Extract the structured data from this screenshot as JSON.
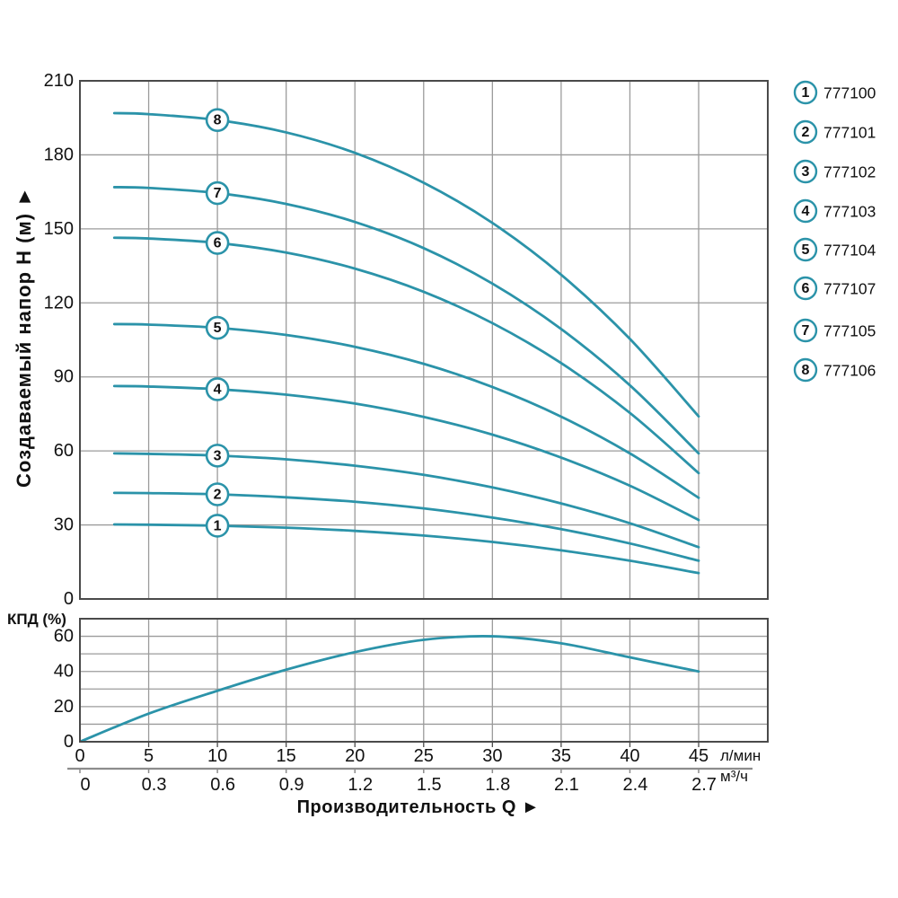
{
  "colors": {
    "curve": "#2b93a9",
    "grid": "#9b9b9b",
    "frame": "#4a4a4a",
    "text": "#111111",
    "secondary_axis": "#8c8c8c",
    "background": "#ffffff"
  },
  "y_axis": {
    "title": "Создаваемый напор H (м) ►",
    "tick_labels": [
      "210",
      "180",
      "150",
      "120",
      "90",
      "60",
      "30",
      "0"
    ]
  },
  "x_axis": {
    "title": "Производительность Q ►",
    "primary_tick_labels": [
      "0",
      "5",
      "10",
      "15",
      "20",
      "25",
      "30",
      "35",
      "40",
      "45"
    ],
    "primary_tick_values": [
      0,
      5,
      10,
      15,
      20,
      25,
      30,
      35,
      40,
      45
    ],
    "primary_unit": "л/мин",
    "secondary_tick_labels": [
      "0",
      "0.3",
      "0.6",
      "0.9",
      "1.2",
      "1.5",
      "1.8",
      "2.1",
      "2.4",
      "2.7"
    ],
    "secondary_unit": "м³/ч"
  },
  "efficiency_axis": {
    "title": "КПД (%)",
    "tick_labels": [
      "60",
      "40",
      "20",
      "0"
    ],
    "tick_values": [
      60,
      40,
      20,
      0
    ]
  },
  "legend": {
    "items": [
      {
        "number": "1",
        "part_number": "777100"
      },
      {
        "number": "2",
        "part_number": "777101"
      },
      {
        "number": "3",
        "part_number": "777102"
      },
      {
        "number": "4",
        "part_number": "777103"
      },
      {
        "number": "5",
        "part_number": "777104"
      },
      {
        "number": "6",
        "part_number": "777107"
      },
      {
        "number": "7",
        "part_number": "777105"
      },
      {
        "number": "8",
        "part_number": "777106"
      }
    ]
  },
  "chart_data": [
    {
      "id": "head_flow_curves",
      "type": "line",
      "xlabel_units": [
        "л/мин",
        "м³/ч"
      ],
      "ylabel": "Создаваемый напор H (м)",
      "xlim": [
        0,
        50
      ],
      "ylim": [
        0,
        210
      ],
      "x_gridline_step": 5,
      "y_gridline_step": 30,
      "curve_label_at_x": 10,
      "x": [
        2.5,
        5,
        10,
        15,
        20,
        25,
        30,
        35,
        40,
        45
      ],
      "series": [
        {
          "name": "1",
          "part_number": "777100",
          "values": [
            30.2,
            30.1,
            29.7,
            28.9,
            27.6,
            25.7,
            23.1,
            19.7,
            15.5,
            10.5
          ]
        },
        {
          "name": "2",
          "part_number": "777101",
          "values": [
            43.0,
            42.9,
            42.4,
            41.2,
            39.4,
            36.7,
            33.0,
            28.3,
            22.5,
            15.5
          ]
        },
        {
          "name": "3",
          "part_number": "777102",
          "values": [
            59.0,
            58.8,
            58.1,
            56.6,
            54.0,
            50.3,
            45.2,
            38.7,
            30.7,
            21.0
          ]
        },
        {
          "name": "4",
          "part_number": "777103",
          "values": [
            86.3,
            86.1,
            85.0,
            82.8,
            79.2,
            73.8,
            66.6,
            57.3,
            45.9,
            32.0
          ]
        },
        {
          "name": "5",
          "part_number": "777104",
          "values": [
            111.4,
            111.2,
            109.9,
            107.0,
            102.2,
            95.3,
            85.9,
            73.9,
            59.0,
            41.0
          ]
        },
        {
          "name": "6",
          "part_number": "777107",
          "values": [
            146.4,
            146.1,
            144.3,
            140.4,
            133.9,
            124.5,
            111.8,
            95.6,
            75.4,
            51.0
          ]
        },
        {
          "name": "7",
          "part_number": "777105",
          "values": [
            166.9,
            166.6,
            164.5,
            160.1,
            152.8,
            142.2,
            127.8,
            109.4,
            86.6,
            59.0
          ]
        },
        {
          "name": "8",
          "part_number": "777106",
          "values": [
            196.9,
            196.5,
            194.1,
            189.1,
            180.8,
            168.7,
            152.4,
            131.4,
            105.4,
            74.0
          ]
        }
      ]
    },
    {
      "id": "efficiency_curve",
      "type": "line",
      "ylabel": "КПД (%)",
      "xlim": [
        0,
        50
      ],
      "ylim": [
        0,
        70
      ],
      "x_gridline_step": 5,
      "y_gridline_step": 10,
      "x": [
        0,
        5,
        10,
        15,
        20,
        25,
        30,
        35,
        40,
        45
      ],
      "values": [
        0,
        16,
        29,
        41,
        51,
        58,
        60,
        56,
        48,
        40
      ]
    }
  ]
}
